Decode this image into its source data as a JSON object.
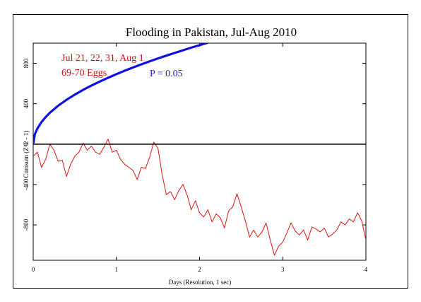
{
  "chart_data": {
    "type": "line",
    "title": "Flooding in Pakistan, Jul-Aug 2010",
    "xlabel": "Days (Resolution, 1 sec)",
    "ylabel": "Cumsum (Z^2 - 1)",
    "xlim": [
      0,
      4
    ],
    "ylim": [
      -1150,
      1000
    ],
    "xticks": [
      0,
      1,
      2,
      3,
      4
    ],
    "yticks": [
      -800,
      -400,
      0,
      400,
      800
    ],
    "annotations": {
      "dates": "Jul 21, 22, 31, Aug 1",
      "eggs": "69-70 Eggs",
      "probability": "P = 0.05"
    },
    "colors": {
      "cumsum": "#dd1111",
      "probability": "#1111dd",
      "zero": "#000000"
    },
    "series": [
      {
        "role": "cumsum",
        "x": [
          0,
          0.05,
          0.1,
          0.15,
          0.2,
          0.25,
          0.3,
          0.35,
          0.4,
          0.45,
          0.5,
          0.55,
          0.6,
          0.65,
          0.7,
          0.75,
          0.8,
          0.85,
          0.9,
          0.95,
          1.0,
          1.05,
          1.1,
          1.15,
          1.2,
          1.25,
          1.3,
          1.35,
          1.4,
          1.45,
          1.5,
          1.55,
          1.6,
          1.65,
          1.7,
          1.75,
          1.8,
          1.85,
          1.9,
          1.95,
          2.0,
          2.05,
          2.1,
          2.15,
          2.2,
          2.25,
          2.3,
          2.35,
          2.4,
          2.45,
          2.5,
          2.55,
          2.6,
          2.65,
          2.7,
          2.75,
          2.8,
          2.85,
          2.9,
          2.95,
          3.0,
          3.05,
          3.1,
          3.15,
          3.2,
          3.25,
          3.3,
          3.35,
          3.4,
          3.45,
          3.5,
          3.55,
          3.6,
          3.65,
          3.7,
          3.75,
          3.8,
          3.85,
          3.9,
          3.95,
          4.0
        ],
        "y": [
          -120,
          -80,
          -230,
          -150,
          0,
          -60,
          -170,
          -160,
          -320,
          -200,
          -120,
          -80,
          10,
          -60,
          -20,
          -80,
          -100,
          -30,
          50,
          -80,
          -60,
          -150,
          -200,
          -230,
          -260,
          -350,
          -230,
          -240,
          -130,
          20,
          -40,
          -300,
          -500,
          -470,
          -550,
          -460,
          -400,
          -500,
          -650,
          -560,
          -680,
          -720,
          -650,
          -770,
          -690,
          -730,
          -830,
          -660,
          -620,
          -490,
          -620,
          -760,
          -920,
          -850,
          -920,
          -870,
          -780,
          -950,
          -1100,
          -1010,
          -970,
          -880,
          -780,
          -860,
          -900,
          -850,
          -950,
          -820,
          -840,
          -870,
          -830,
          -920,
          -890,
          -850,
          -770,
          -800,
          -740,
          -770,
          -680,
          -760,
          -950
        ]
      },
      {
        "role": "probability",
        "x": [
          0,
          0.02,
          0.05,
          0.1,
          0.15,
          0.2,
          0.3,
          0.4,
          0.5,
          0.6,
          0.7,
          0.8,
          0.9,
          1.0,
          1.1,
          1.2,
          1.3,
          1.4,
          1.5,
          1.6,
          1.7,
          1.8,
          1.9,
          2.0,
          2.1,
          2.2
        ],
        "y": [
          0,
          98,
          155,
          219,
          268,
          310,
          380,
          438,
          490,
          537,
          580,
          620,
          657,
          693,
          727,
          759,
          790,
          820,
          849,
          876,
          903,
          929,
          955,
          980,
          1004,
          1028
        ]
      },
      {
        "role": "zero",
        "x": [
          0,
          4
        ],
        "y": [
          0,
          0
        ]
      }
    ]
  }
}
